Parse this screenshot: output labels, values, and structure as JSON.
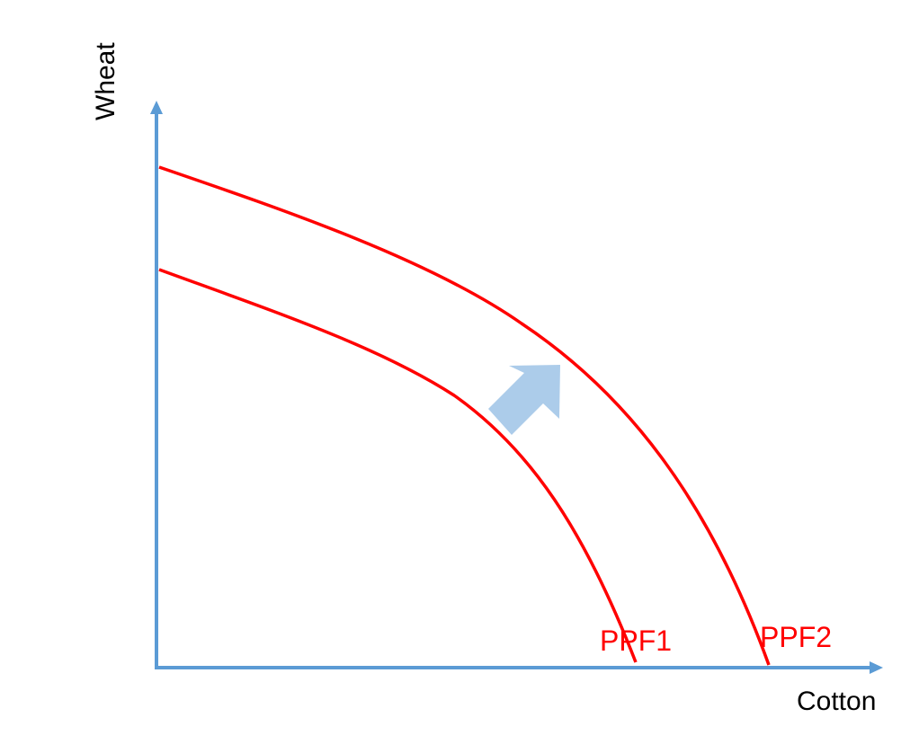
{
  "axes": {
    "x_label": "Cotton",
    "y_label": "Wheat",
    "color": "#5b9bd5"
  },
  "curves": [
    {
      "id": "ppf1",
      "label": "PPF1",
      "color": "#ff0000"
    },
    {
      "id": "ppf2",
      "label": "PPF2",
      "color": "#ff0000"
    }
  ],
  "shift_arrow": {
    "direction": "outward (up-right)",
    "color": "#9dc3e6"
  }
}
